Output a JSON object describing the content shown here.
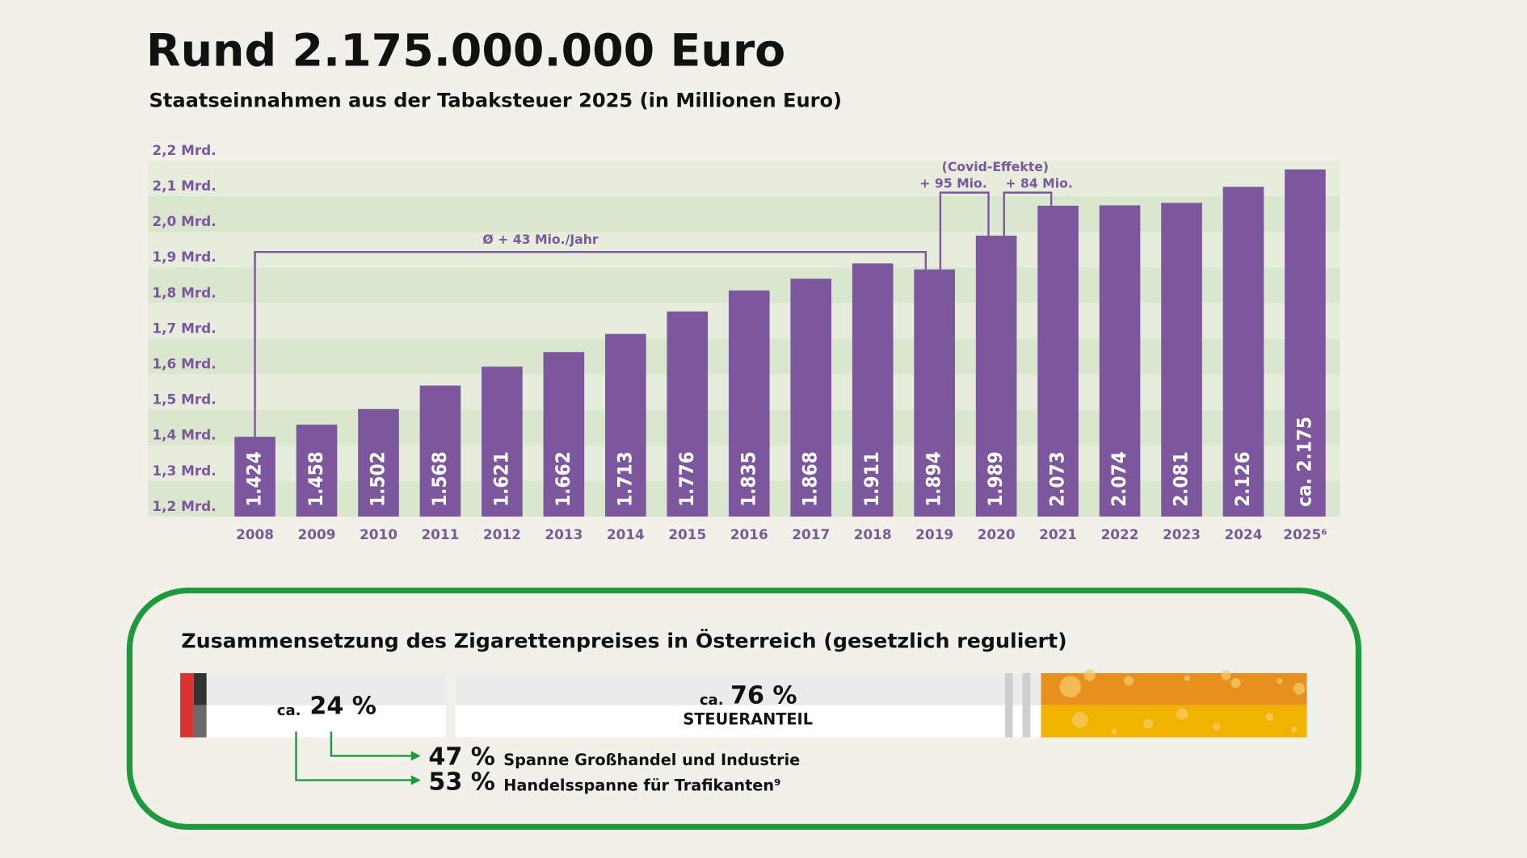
{
  "chart_data": {
    "type": "bar",
    "title": "Rund 2.175.000.000 Euro",
    "subtitle": "Staatseinnahmen aus der Tabaksteuer 2025 (in Millionen Euro)",
    "categories": [
      "2008",
      "2009",
      "2010",
      "2011",
      "2012",
      "2013",
      "2014",
      "2015",
      "2016",
      "2017",
      "2018",
      "2019",
      "2020",
      "2021",
      "2022",
      "2023",
      "2024",
      "2025⁶"
    ],
    "values": [
      1424,
      1458,
      1502,
      1568,
      1621,
      1662,
      1713,
      1776,
      1835,
      1868,
      1911,
      1894,
      1989,
      2073,
      2074,
      2081,
      2126,
      2175
    ],
    "value_labels": [
      "1.424",
      "1.458",
      "1.502",
      "1.568",
      "1.621",
      "1.662",
      "1.713",
      "1.776",
      "1.835",
      "1.868",
      "1.911",
      "1.894",
      "1.989",
      "2.073",
      "2.074",
      "2.081",
      "2.126",
      "ca. 2.175"
    ],
    "color": "#7d579d",
    "ylim": [
      1200,
      2200
    ],
    "yticks": [
      {
        "value": 1200,
        "label": "1,2 Mrd."
      },
      {
        "value": 1300,
        "label": "1,3 Mrd."
      },
      {
        "value": 1400,
        "label": "1,4 Mrd."
      },
      {
        "value": 1500,
        "label": "1,5 Mrd."
      },
      {
        "value": 1600,
        "label": "1,6 Mrd."
      },
      {
        "value": 1700,
        "label": "1,7 Mrd."
      },
      {
        "value": 1800,
        "label": "1,8 Mrd."
      },
      {
        "value": 1900,
        "label": "1,9 Mrd."
      },
      {
        "value": 2000,
        "label": "2,0 Mrd."
      },
      {
        "value": 2100,
        "label": "2,1 Mrd."
      },
      {
        "value": 2200,
        "label": "2,2 Mrd."
      }
    ],
    "grid": "bands",
    "band_colors": [
      "#d8e7cd",
      "#e6eddc"
    ],
    "annotations": {
      "average": "Ø + 43 Mio./Jahr",
      "covid": "(Covid-Effekte)",
      "covid_2020": "+ 95 Mio.",
      "covid_2021": "+ 84 Mio."
    }
  },
  "price_breakdown": {
    "title": "Zusammensetzung des Zigarettenpreises in Österreich (gesetzlich reguliert)",
    "segments": [
      {
        "prefix": "ca.",
        "value": 24,
        "label": "24 %"
      },
      {
        "prefix": "ca.",
        "value": 76,
        "label": "76 %",
        "caption": "STEUERANTEIL"
      }
    ],
    "split": [
      {
        "value": 47,
        "label": "47 %",
        "text": "Spanne Großhandel und Industrie"
      },
      {
        "value": 53,
        "label": "53 %",
        "text": "Handelsspanne für Trafikanten⁹"
      }
    ]
  }
}
